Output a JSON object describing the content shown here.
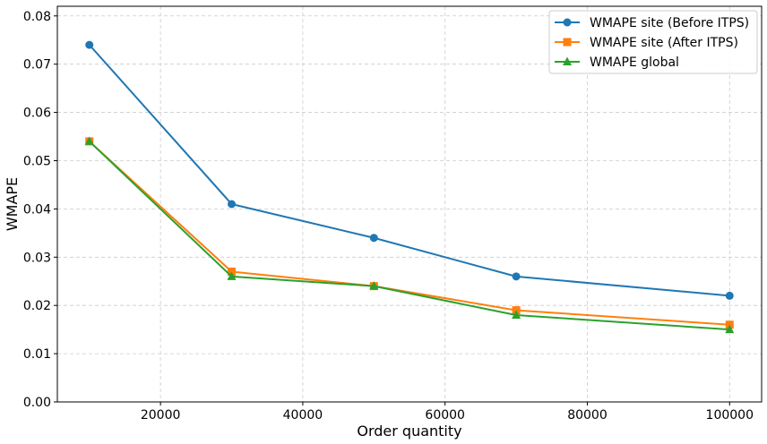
{
  "chart_data": {
    "type": "line",
    "xlabel": "Order quantity",
    "ylabel": "WMAPE",
    "xlim": [
      5500,
      104500
    ],
    "ylim": [
      0,
      0.082
    ],
    "grid": true,
    "legend_position": "top-right",
    "x_ticks": [
      20000,
      40000,
      60000,
      80000,
      100000
    ],
    "x_tick_labels": [
      "20000",
      "40000",
      "60000",
      "80000",
      "100000"
    ],
    "y_ticks": [
      0.0,
      0.01,
      0.02,
      0.03,
      0.04,
      0.05,
      0.06,
      0.07,
      0.08
    ],
    "y_tick_labels": [
      "0.00",
      "0.01",
      "0.02",
      "0.03",
      "0.04",
      "0.05",
      "0.06",
      "0.07",
      "0.08"
    ],
    "x": [
      10000,
      30000,
      50000,
      70000,
      100000
    ],
    "series": [
      {
        "name": "WMAPE site (Before ITPS)",
        "color": "#1f77b4",
        "marker": "circle",
        "values": [
          0.074,
          0.041,
          0.034,
          0.026,
          0.022
        ]
      },
      {
        "name": "WMAPE site (After ITPS)",
        "color": "#ff7f0e",
        "marker": "square",
        "values": [
          0.054,
          0.027,
          0.024,
          0.019,
          0.016
        ]
      },
      {
        "name": "WMAPE global",
        "color": "#2ca02c",
        "marker": "triangle",
        "values": [
          0.054,
          0.026,
          0.024,
          0.018,
          0.015
        ]
      }
    ]
  }
}
